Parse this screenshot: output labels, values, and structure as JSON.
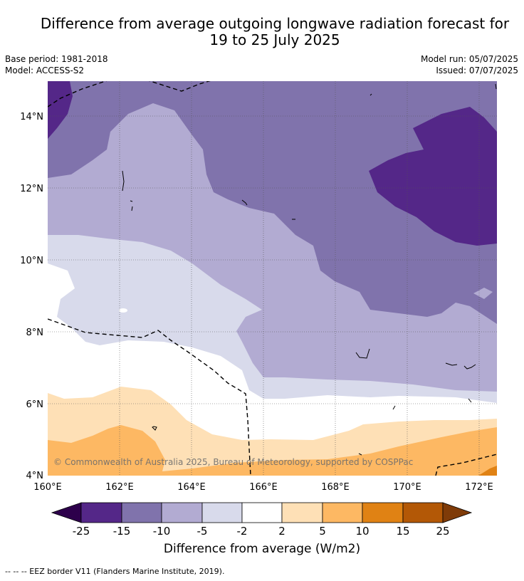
{
  "title": {
    "line1": "Difference from average outgoing longwave radiation forecast for",
    "line2": "19 to 25 July 2025"
  },
  "meta": {
    "base_period": "Base period: 1981-2018",
    "model": "Model: ACCESS-S2",
    "model_run": "Model run: 05/07/2025",
    "issued": "Issued: 07/07/2025"
  },
  "map": {
    "lon_labels": [
      "160°E",
      "162°E",
      "164°E",
      "166°E",
      "168°E",
      "170°E",
      "172°E"
    ],
    "lat_labels": [
      "4°N",
      "6°N",
      "8°N",
      "10°N",
      "12°N",
      "14°N"
    ],
    "copyright": "© Commonwealth of Australia 2025, Bureau of Meteorology, supported by COSPPac"
  },
  "colorbar": {
    "label": "Difference from average (W/m2)",
    "ticks": [
      "-25",
      "-15",
      "-10",
      "-5",
      "-2",
      "2",
      "5",
      "10",
      "15",
      "25"
    ],
    "colors": {
      "lt_-25": "#2d004b",
      "-25_-15": "#542788",
      "-15_-10": "#8073ac",
      "-10_-5": "#b2abd2",
      "-5_-2": "#d8daeb",
      "-2_2": "#ffffff",
      "2_5": "#fee0b6",
      "5_10": "#fdb863",
      "10_15": "#e08214",
      "15_25": "#b35806",
      "gt_25": "#7f3b08"
    }
  },
  "footer": {
    "legend": "--  --  -- EEZ border V11 (Flanders Marine Institute, 2019)."
  }
}
